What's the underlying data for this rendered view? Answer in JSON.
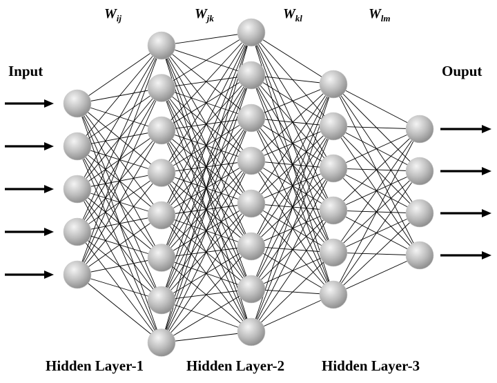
{
  "labels": {
    "input": "Input",
    "output": "Ouput",
    "hidden": [
      "Hidden Layer-1",
      "Hidden Layer-2",
      "Hidden Layer-3"
    ]
  },
  "weights": [
    {
      "base": "W",
      "sub": "ij"
    },
    {
      "base": "W",
      "sub": "jk"
    },
    {
      "base": "W",
      "sub": "kl"
    },
    {
      "base": "W",
      "sub": "lm"
    }
  ],
  "network": {
    "layers": [
      {
        "name": "input-layer",
        "neurons": 5
      },
      {
        "name": "hidden-layer-1",
        "neurons": 8
      },
      {
        "name": "hidden-layer-2",
        "neurons": 8
      },
      {
        "name": "hidden-layer-3",
        "neurons": 6
      },
      {
        "name": "output-layer",
        "neurons": 4
      }
    ],
    "input_arrows": 5,
    "output_arrows": 4
  },
  "colors": {
    "neuron_light": "#f4f4f4",
    "neuron_mid": "#bdbdbd",
    "neuron_dark": "#8a8a8a",
    "line": "#000000",
    "background": "#ffffff"
  }
}
